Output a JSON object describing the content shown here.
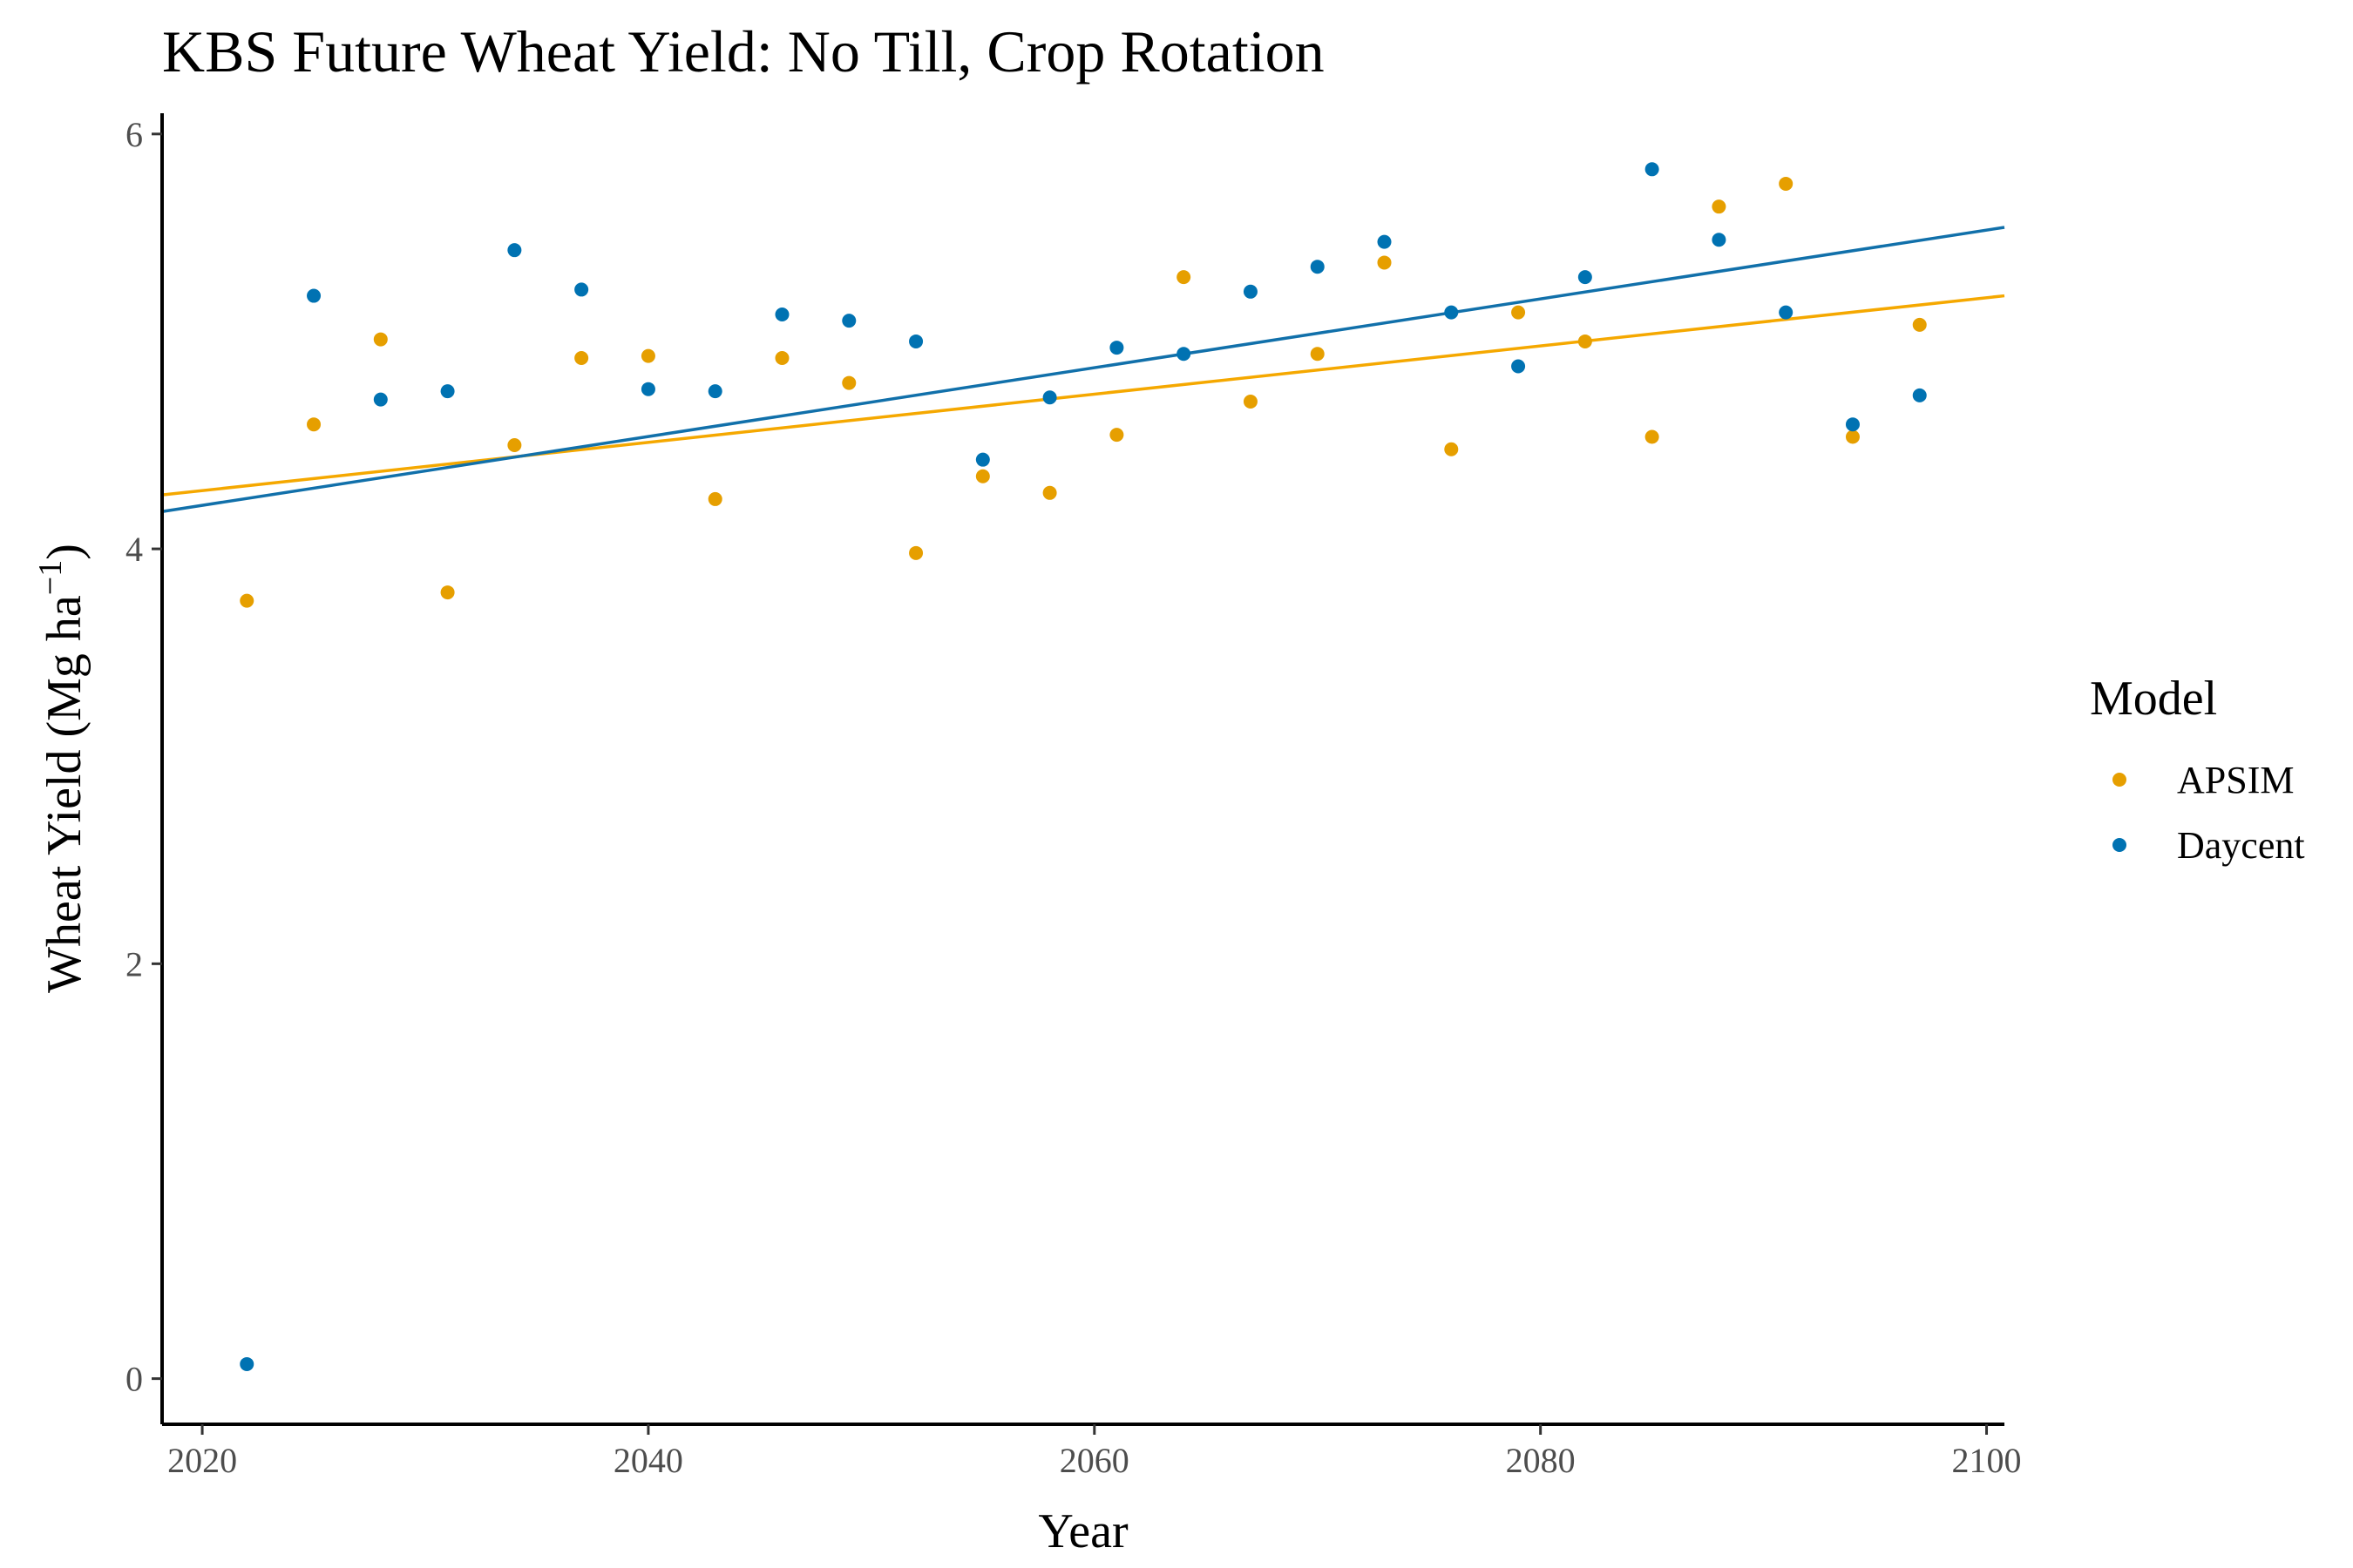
{
  "chart_data": {
    "type": "scatter",
    "title": "KBS Future Wheat Yield:  No Till, Crop Rotation",
    "xlabel": "Year",
    "ylabel_main": "Wheat Yield (Mg ha",
    "ylabel_sup": "−1",
    "ylabel_close": ")",
    "xlim": [
      2018.2,
      2100.8
    ],
    "ylim": [
      -0.22,
      6.1
    ],
    "x_ticks": [
      2020,
      2040,
      2060,
      2080,
      2100
    ],
    "y_ticks": [
      0,
      2,
      4,
      6
    ],
    "legend": {
      "title": "Model",
      "placement": "right"
    },
    "grid": false,
    "series": [
      {
        "name": "APSIM",
        "color": "#E69F00",
        "line_color": "#F5A800",
        "fit_line": [
          [
            2018.2,
            4.26
          ],
          [
            2100.8,
            5.22
          ]
        ],
        "points": [
          [
            2022,
            3.75
          ],
          [
            2025,
            4.6
          ],
          [
            2028,
            5.01
          ],
          [
            2031,
            3.79
          ],
          [
            2034,
            4.5
          ],
          [
            2037,
            4.92
          ],
          [
            2040,
            4.93
          ],
          [
            2043,
            4.24
          ],
          [
            2046,
            4.92
          ],
          [
            2049,
            4.8
          ],
          [
            2052,
            3.98
          ],
          [
            2055,
            4.35
          ],
          [
            2058,
            4.27
          ],
          [
            2061,
            4.55
          ],
          [
            2064,
            5.31
          ],
          [
            2067,
            4.71
          ],
          [
            2070,
            4.94
          ],
          [
            2073,
            5.38
          ],
          [
            2076,
            4.48
          ],
          [
            2079,
            5.14
          ],
          [
            2082,
            5.0
          ],
          [
            2085,
            4.54
          ],
          [
            2088,
            5.65
          ],
          [
            2091,
            5.76
          ],
          [
            2094,
            4.54
          ],
          [
            2097,
            5.08
          ]
        ]
      },
      {
        "name": "Daycent",
        "color": "#0072B2",
        "line_color": "#1170AA",
        "fit_line": [
          [
            2018.2,
            4.18
          ],
          [
            2100.8,
            5.55
          ]
        ],
        "points": [
          [
            2022,
            0.07
          ],
          [
            2025,
            5.22
          ],
          [
            2028,
            4.72
          ],
          [
            2031,
            4.76
          ],
          [
            2034,
            5.44
          ],
          [
            2037,
            5.25
          ],
          [
            2040,
            4.77
          ],
          [
            2043,
            4.76
          ],
          [
            2046,
            5.13
          ],
          [
            2049,
            5.1
          ],
          [
            2052,
            5.0
          ],
          [
            2055,
            4.43
          ],
          [
            2058,
            4.73
          ],
          [
            2061,
            4.97
          ],
          [
            2064,
            4.94
          ],
          [
            2067,
            5.24
          ],
          [
            2070,
            5.36
          ],
          [
            2073,
            5.48
          ],
          [
            2076,
            5.14
          ],
          [
            2079,
            4.88
          ],
          [
            2082,
            5.31
          ],
          [
            2085,
            5.83
          ],
          [
            2088,
            5.49
          ],
          [
            2091,
            5.14
          ],
          [
            2094,
            4.6
          ],
          [
            2097,
            4.74
          ]
        ]
      }
    ]
  }
}
